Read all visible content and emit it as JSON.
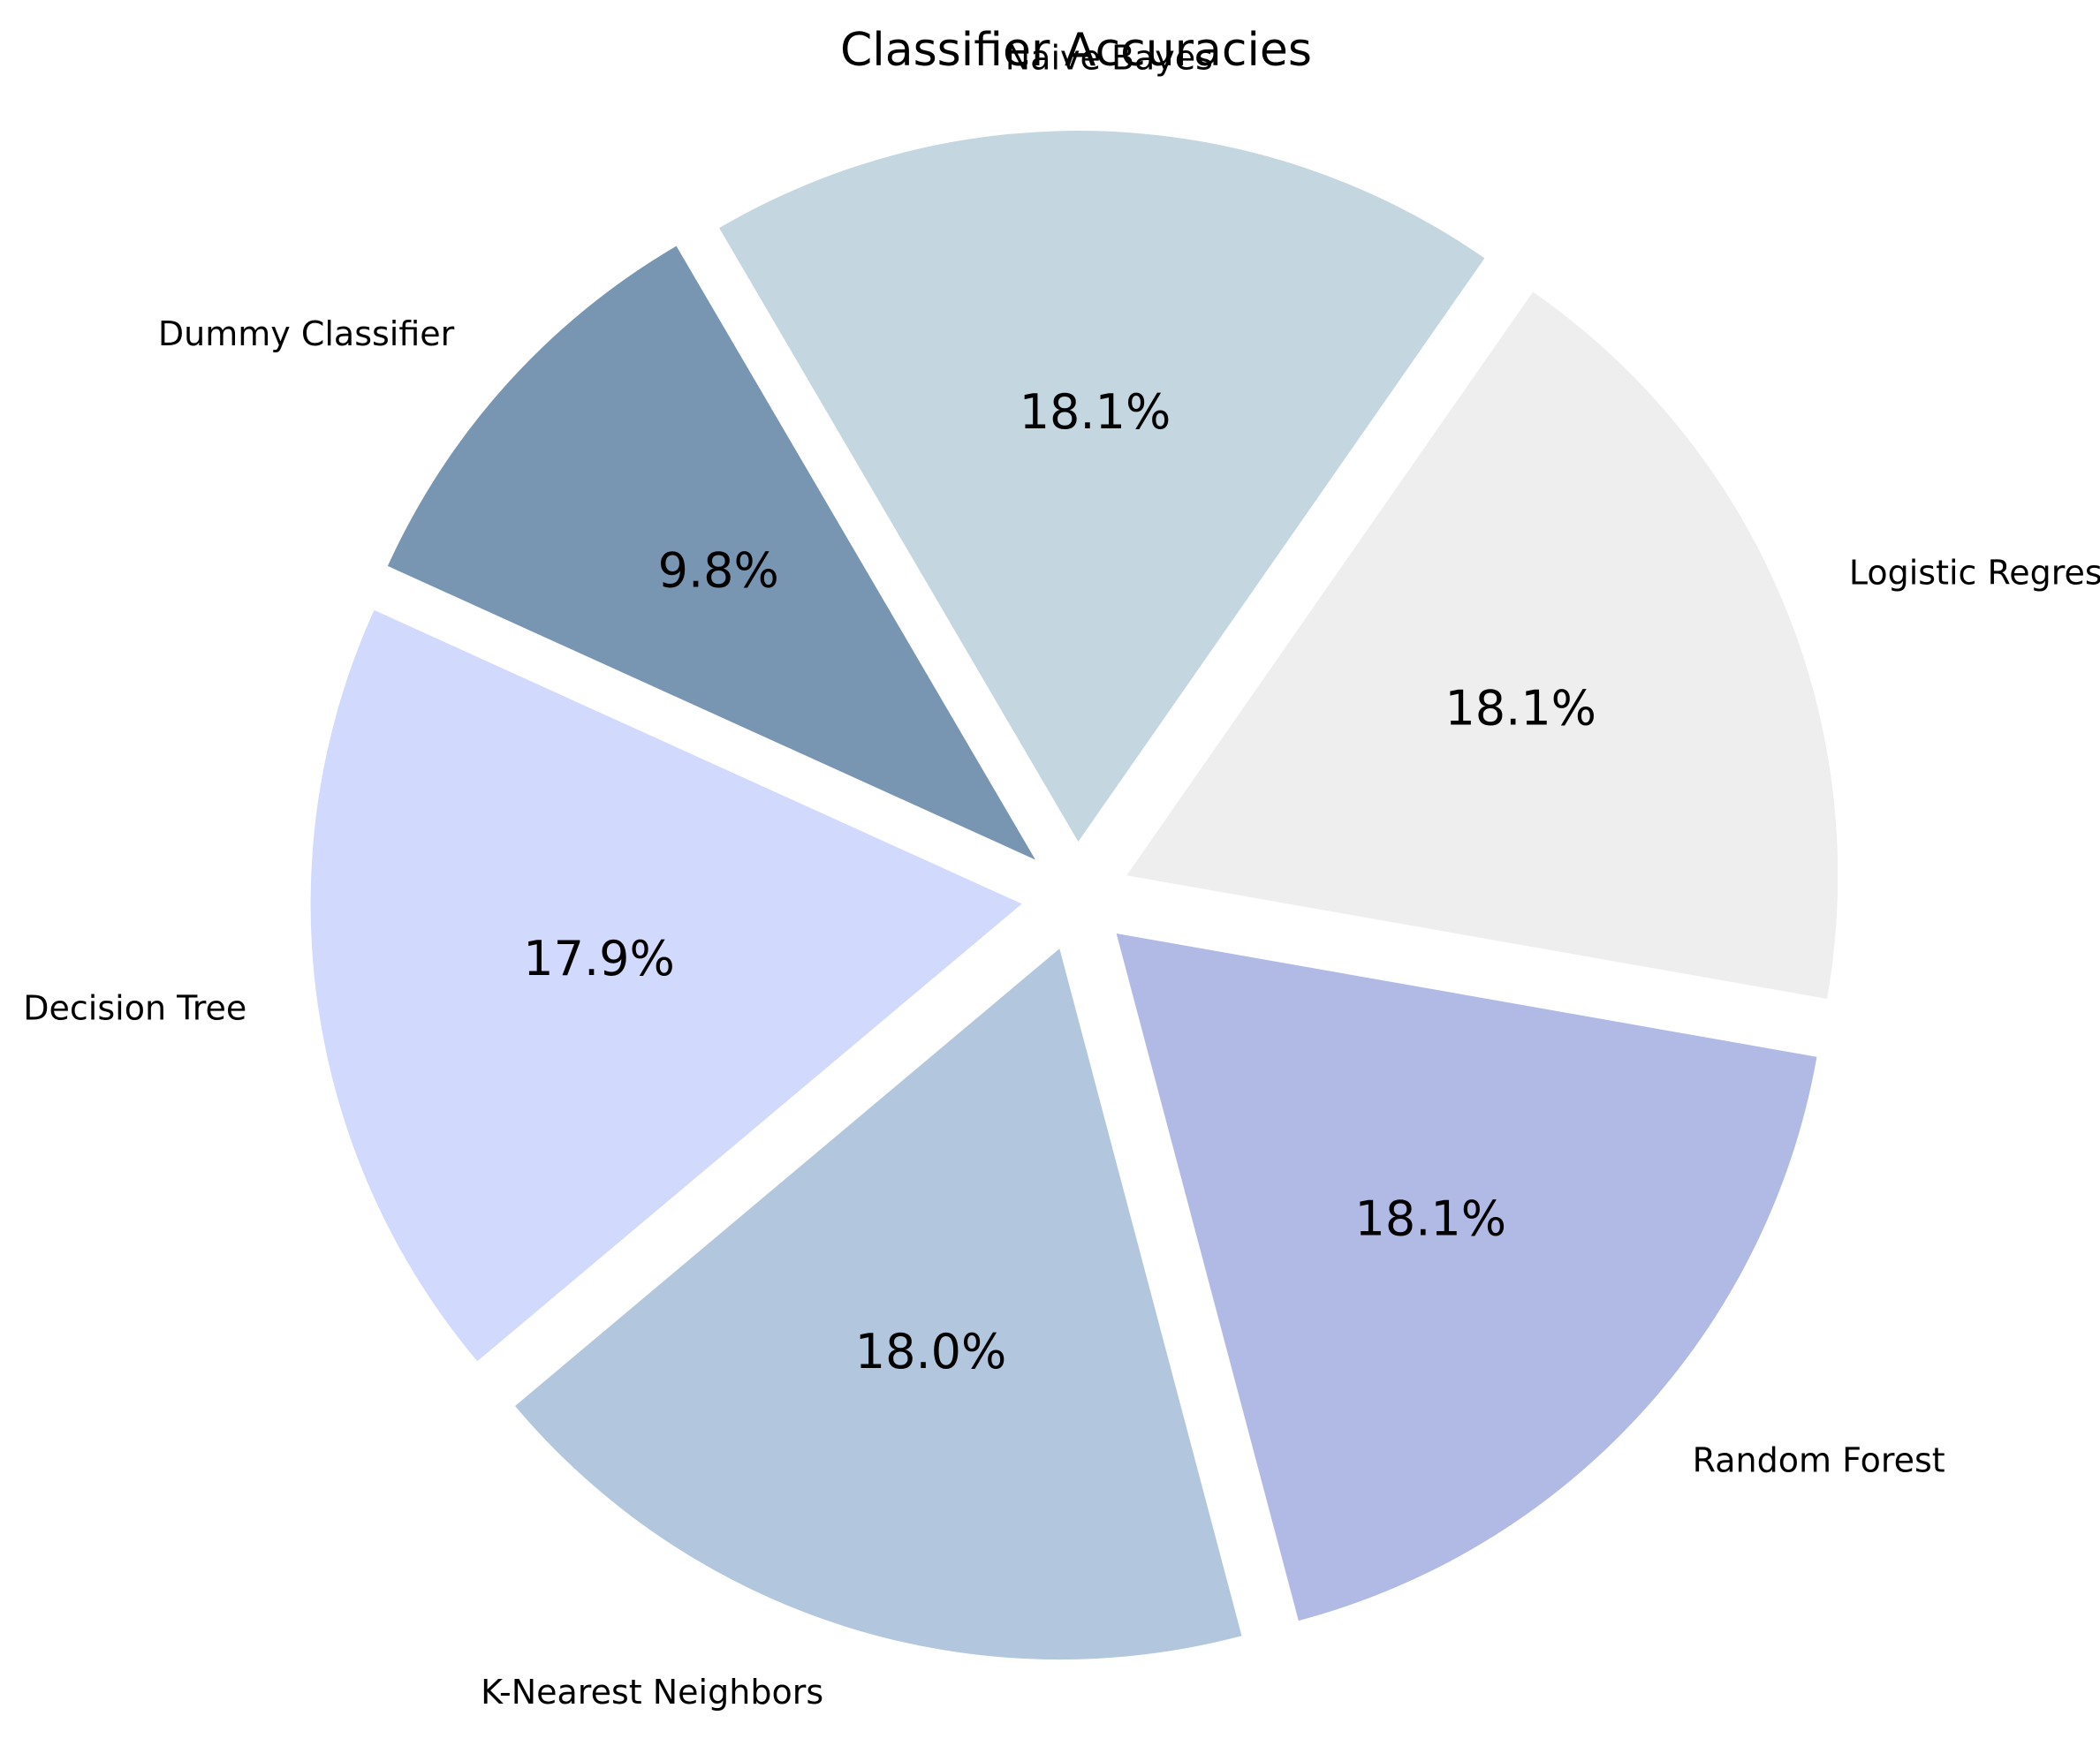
{
  "chart_data": {
    "type": "pie",
    "title": "Classifier Accuracies",
    "categories": [
      "Logistic Regression",
      "Naive Bayes",
      "Dummy Classifier",
      "Decision Tree",
      "K-Nearest Neighbors",
      "Random Forest"
    ],
    "values": [
      18.1,
      18.1,
      9.8,
      17.9,
      18.0,
      18.1
    ],
    "value_labels": [
      "18.1%",
      "18.1%",
      "9.8%",
      "17.9%",
      "18.0%",
      "18.1%"
    ],
    "colors": [
      "#eeeeee",
      "#c4d6e0",
      "#7896b2",
      "#d1d9fd",
      "#b2c7de",
      "#b0bae5"
    ],
    "exploded": true,
    "start_angle_deg": -10,
    "direction": "counterclockwise"
  }
}
